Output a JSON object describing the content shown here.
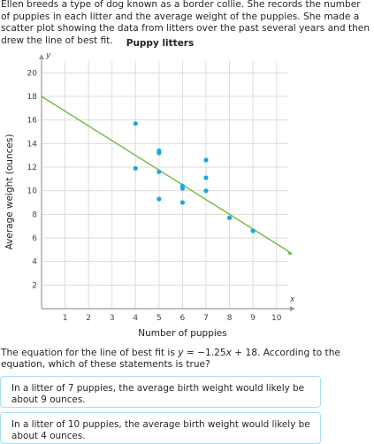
{
  "intro_text": "Ellen breeds a type of dog known as a border collie. She records the number of puppies in each litter and the average weight of the puppies. She made a scatter plot showing the data from litters over the past several years and then drew the line of best fit.",
  "question": {
    "prefix": "The equation for the line of best fit is ",
    "equation_y": "y",
    "equation_mid": " = −1.25",
    "equation_x": "x",
    "equation_end": " + 18. According to the equation, which of these statements is true?"
  },
  "choices": [
    {
      "label": "In a litter of 7 puppies, the average birth weight would likely be about 9 ounces."
    },
    {
      "label": "In a litter of 10 puppies, the average birth weight would likely be about 4 ounces."
    }
  ],
  "chart_data": {
    "type": "scatter",
    "title": "Puppy litters",
    "xlabel": "Number of puppies",
    "ylabel": "Average weight (ounces)",
    "x_axis_var": "x",
    "y_axis_var": "y",
    "xlim": [
      0,
      10.5
    ],
    "ylim": [
      0,
      21
    ],
    "x_ticks": [
      1,
      2,
      3,
      4,
      5,
      6,
      7,
      8,
      9,
      10
    ],
    "y_ticks": [
      2,
      4,
      6,
      8,
      10,
      12,
      14,
      16,
      18,
      20
    ],
    "grid": true,
    "points": [
      {
        "x": 4,
        "y": 15.7
      },
      {
        "x": 4,
        "y": 11.9
      },
      {
        "x": 5,
        "y": 13.4
      },
      {
        "x": 5,
        "y": 13.2
      },
      {
        "x": 5,
        "y": 11.6
      },
      {
        "x": 5,
        "y": 9.3
      },
      {
        "x": 6,
        "y": 10.4
      },
      {
        "x": 6,
        "y": 10.2
      },
      {
        "x": 6,
        "y": 9.0
      },
      {
        "x": 7,
        "y": 12.6
      },
      {
        "x": 7,
        "y": 11.1
      },
      {
        "x": 7,
        "y": 10.0
      },
      {
        "x": 8,
        "y": 7.7
      },
      {
        "x": 9,
        "y": 6.6
      }
    ],
    "best_fit": {
      "slope": -1.25,
      "intercept": 18,
      "x_range": [
        0,
        10.5
      ]
    },
    "point_color": "#1aa7e0",
    "line_color": "#6dbb3c",
    "grid_color": "#dcdcdc",
    "axis_color": "#9a9a9a"
  }
}
